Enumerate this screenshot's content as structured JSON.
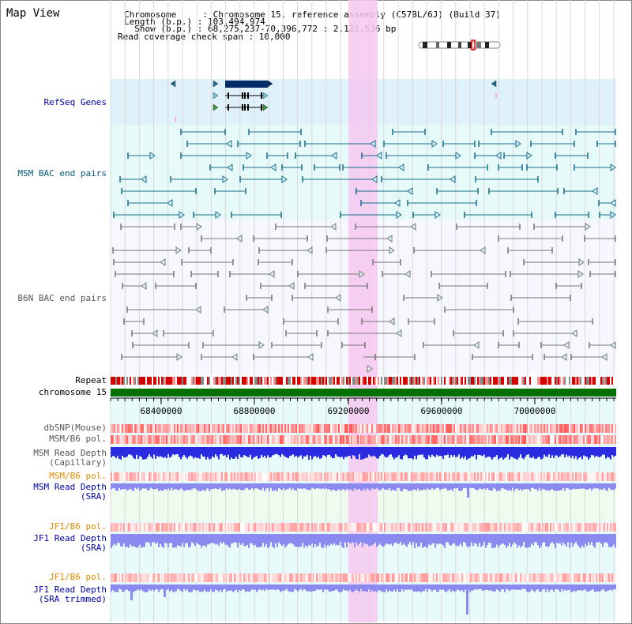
{
  "title": "Map View",
  "info": {
    "line1": "Chromosome     : Chromosome 15, reference assembly (C57BL/6J) (Build 37)",
    "line2": "Length (b.p.) : 103,494,974",
    "line3": "  Show (b.p.) : 68,275,237-70,396,772 : 2,121,536 bp",
    "line4": "Read coverage check span : 10,000"
  },
  "tracks": {
    "refseq": "RefSeq Genes",
    "msm_bac": "MSM BAC end pairs",
    "b6n_bac": "B6N BAC end pairs",
    "repeat": "Repeat",
    "chromosome": "chromosome 15",
    "dbsnp": "dbSNP(Mouse)",
    "msm_pol1": "MSM/B6 pol.",
    "msm_depth_cap_1": "MSM Read Depth",
    "msm_depth_cap_2": "(Capillary)",
    "msm_pol2": "MSM/B6 pol.",
    "msm_depth_sra_1": "MSM Read Depth",
    "msm_depth_sra_2": "(SRA)",
    "jf1_pol1": "JF1/B6 pol.",
    "jf1_depth_sra_1": "JF1 Read Depth",
    "jf1_depth_sra_2": "(SRA)",
    "jf1_pol2": "JF1/B6 pol.",
    "jf1_depth_trim_1": "JF1 Read Depth",
    "jf1_depth_trim_2": "(SRA trimmed)"
  },
  "axis": {
    "ticks": [
      "68400000",
      "68800000",
      "69200000",
      "69600000",
      "70000000"
    ]
  },
  "colors": {
    "gene": "#002b66",
    "msm_pair": "#1a6e8c",
    "b6n_pair": "#777777",
    "chromosome_bar": "#007000",
    "depth_blue": "#2a2ae0",
    "depth_light": "#8a8af0",
    "highlight": "#f6c8f0"
  }
}
